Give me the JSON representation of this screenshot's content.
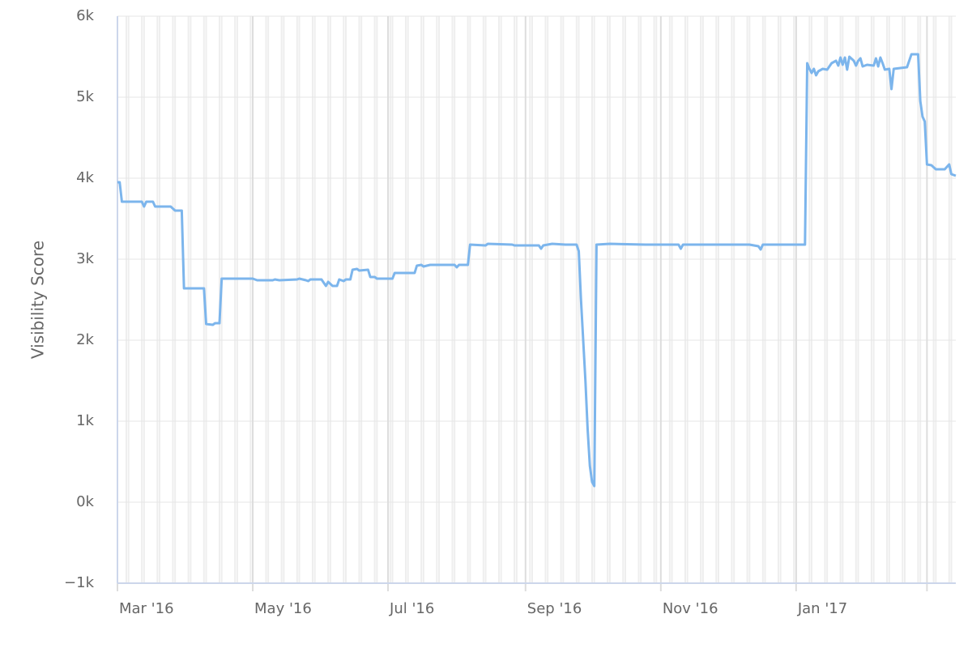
{
  "chart_data": {
    "type": "line",
    "y_axis_label": "Visibility Score",
    "xlim": [
      "2016-03-01",
      "2017-03-14"
    ],
    "xticks": [
      {
        "value": "2016-03-01",
        "label": "Mar '16"
      },
      {
        "value": "2016-05-01",
        "label": "May '16"
      },
      {
        "value": "2016-07-01",
        "label": "Jul '16"
      },
      {
        "value": "2016-09-01",
        "label": "Sep '16"
      },
      {
        "value": "2016-11-01",
        "label": "Nov '16"
      },
      {
        "value": "2017-01-01",
        "label": "Jan '17"
      },
      {
        "value": "2017-03-01",
        "label": null
      }
    ],
    "ylim": [
      -1000,
      6000
    ],
    "yticks": [
      {
        "value": -1000,
        "label": "−1k"
      },
      {
        "value": 0,
        "label": "0k"
      },
      {
        "value": 1000,
        "label": "1k"
      },
      {
        "value": 2000,
        "label": "2k"
      },
      {
        "value": 3000,
        "label": "3k"
      },
      {
        "value": 4000,
        "label": "4k"
      },
      {
        "value": 5000,
        "label": "5k"
      },
      {
        "value": 6000,
        "label": "6k"
      }
    ],
    "grid": true,
    "weekend_bands": true,
    "x": [
      "2016-03-01",
      "2016-03-02",
      "2016-03-03",
      "2016-03-12",
      "2016-03-13",
      "2016-03-14",
      "2016-03-17",
      "2016-03-18",
      "2016-03-25",
      "2016-03-27",
      "2016-03-30",
      "2016-03-31",
      "2016-04-09",
      "2016-04-10",
      "2016-04-13",
      "2016-04-14",
      "2016-04-16",
      "2016-04-17",
      "2016-05-01",
      "2016-05-03",
      "2016-05-10",
      "2016-05-11",
      "2016-05-13",
      "2016-05-21",
      "2016-05-22",
      "2016-05-25",
      "2016-05-26",
      "2016-05-27",
      "2016-06-01",
      "2016-06-03",
      "2016-06-04",
      "2016-06-06",
      "2016-06-08",
      "2016-06-09",
      "2016-06-11",
      "2016-06-12",
      "2016-06-14",
      "2016-06-15",
      "2016-06-17",
      "2016-06-18",
      "2016-06-22",
      "2016-06-23",
      "2016-06-25",
      "2016-06-26",
      "2016-07-03",
      "2016-07-04",
      "2016-07-13",
      "2016-07-14",
      "2016-07-16",
      "2016-07-17",
      "2016-07-20",
      "2016-07-31",
      "2016-08-01",
      "2016-08-02",
      "2016-08-06",
      "2016-08-07",
      "2016-08-14",
      "2016-08-15",
      "2016-08-26",
      "2016-08-27",
      "2016-09-07",
      "2016-09-08",
      "2016-09-09",
      "2016-09-13",
      "2016-09-19",
      "2016-09-24",
      "2016-09-25",
      "2016-09-26",
      "2016-09-28",
      "2016-09-29",
      "2016-09-30",
      "2016-10-01",
      "2016-10-02",
      "2016-10-03",
      "2016-10-09",
      "2016-10-25",
      "2016-11-09",
      "2016-11-10",
      "2016-11-11",
      "2016-12-11",
      "2016-12-15",
      "2016-12-16",
      "2016-12-17",
      "2016-12-27",
      "2016-12-31",
      "2017-01-05",
      "2017-01-06",
      "2017-01-07",
      "2017-01-08",
      "2017-01-09",
      "2017-01-10",
      "2017-01-11",
      "2017-01-13",
      "2017-01-15",
      "2017-01-16",
      "2017-01-17",
      "2017-01-19",
      "2017-01-20",
      "2017-01-21",
      "2017-01-22",
      "2017-01-23",
      "2017-01-24",
      "2017-01-25",
      "2017-01-27",
      "2017-01-28",
      "2017-01-29",
      "2017-01-30",
      "2017-01-31",
      "2017-02-02",
      "2017-02-05",
      "2017-02-06",
      "2017-02-07",
      "2017-02-08",
      "2017-02-09",
      "2017-02-10",
      "2017-02-12",
      "2017-02-13",
      "2017-02-14",
      "2017-02-17",
      "2017-02-20",
      "2017-02-22",
      "2017-02-25",
      "2017-02-26",
      "2017-02-27",
      "2017-02-28",
      "2017-03-01",
      "2017-03-03",
      "2017-03-05",
      "2017-03-09",
      "2017-03-11",
      "2017-03-12",
      "2017-03-14"
    ],
    "series": [
      {
        "name": "Visibility Score",
        "color": "#7cb5ec",
        "values": [
          3950,
          3950,
          3710,
          3710,
          3650,
          3710,
          3710,
          3650,
          3650,
          3600,
          3600,
          2640,
          2640,
          2200,
          2190,
          2210,
          2210,
          2760,
          2760,
          2740,
          2740,
          2750,
          2740,
          2750,
          2760,
          2740,
          2730,
          2750,
          2750,
          2670,
          2720,
          2670,
          2670,
          2750,
          2730,
          2750,
          2750,
          2870,
          2880,
          2860,
          2870,
          2780,
          2780,
          2760,
          2760,
          2830,
          2830,
          2920,
          2930,
          2910,
          2930,
          2930,
          2900,
          2930,
          2930,
          3180,
          3170,
          3190,
          3180,
          3170,
          3170,
          3130,
          3170,
          3190,
          3180,
          3180,
          3100,
          2500,
          1500,
          900,
          450,
          250,
          200,
          3180,
          3190,
          3180,
          3180,
          3130,
          3180,
          3180,
          3160,
          3120,
          3180,
          3180,
          3180,
          3180,
          5420,
          5350,
          5300,
          5350,
          5270,
          5320,
          5350,
          5340,
          5380,
          5420,
          5450,
          5390,
          5490,
          5400,
          5490,
          5340,
          5500,
          5450,
          5390,
          5450,
          5480,
          5380,
          5400,
          5390,
          5480,
          5380,
          5490,
          5420,
          5340,
          5350,
          5100,
          5350,
          5360,
          5370,
          5530,
          5530,
          4950,
          4760,
          4700,
          4170,
          4160,
          4110,
          4110,
          4170,
          4050,
          4030
        ]
      }
    ]
  }
}
